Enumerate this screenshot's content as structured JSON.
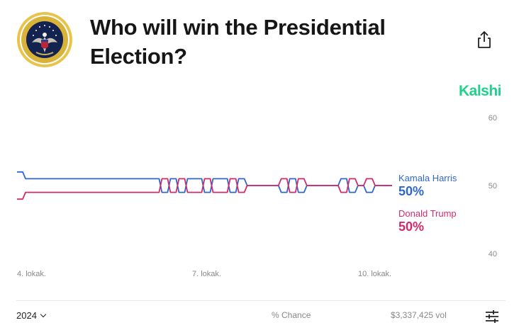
{
  "header": {
    "title": "Who will win the Presidential Election?",
    "brand": "Kalshi",
    "seal_icon": "presidential-seal",
    "share_icon": "share-icon"
  },
  "candidates": [
    {
      "name": "Kamala Harris",
      "percent": "50%",
      "color": "#2f66d0"
    },
    {
      "name": "Donald Trump",
      "percent": "50%",
      "color": "#d42a6a"
    }
  ],
  "chart_data": {
    "type": "line",
    "y_ticks": [
      "60",
      "50",
      "40"
    ],
    "ylim": [
      40,
      60
    ],
    "x_ticks": [
      "4. lokak.",
      "7. lokak.",
      "10. lokak."
    ],
    "grid": false,
    "legend": "right",
    "series": [
      {
        "name": "Kamala Harris",
        "color": "#2f66d0",
        "x": [
          0,
          1,
          2,
          3,
          4,
          5,
          6,
          7,
          8,
          9,
          10,
          11,
          12,
          13,
          14,
          15,
          16,
          17,
          18,
          19,
          20,
          21,
          22,
          23,
          24,
          25,
          26,
          27,
          28,
          29,
          30,
          31,
          32,
          33,
          34,
          35,
          36,
          37,
          38,
          39,
          40,
          41,
          42,
          43,
          44
        ],
        "values": [
          52,
          51,
          51,
          51,
          51,
          51,
          51,
          51,
          51,
          51,
          51,
          51,
          51,
          51,
          51,
          51,
          51,
          49,
          51,
          49,
          51,
          51,
          49,
          51,
          51,
          49,
          51,
          50,
          50,
          50,
          50,
          49,
          51,
          49,
          50,
          50,
          50,
          50,
          51,
          49,
          50,
          49,
          50,
          50,
          50
        ]
      },
      {
        "name": "Donald Trump",
        "color": "#d42a6a",
        "x": [
          0,
          1,
          2,
          3,
          4,
          5,
          6,
          7,
          8,
          9,
          10,
          11,
          12,
          13,
          14,
          15,
          16,
          17,
          18,
          19,
          20,
          21,
          22,
          23,
          24,
          25,
          26,
          27,
          28,
          29,
          30,
          31,
          32,
          33,
          34,
          35,
          36,
          37,
          38,
          39,
          40,
          41,
          42,
          43,
          44
        ],
        "values": [
          48,
          49,
          49,
          49,
          49,
          49,
          49,
          49,
          49,
          49,
          49,
          49,
          49,
          49,
          49,
          49,
          49,
          51,
          49,
          51,
          49,
          49,
          51,
          49,
          49,
          51,
          49,
          50,
          50,
          50,
          50,
          51,
          49,
          51,
          50,
          50,
          50,
          50,
          49,
          51,
          50,
          51,
          50,
          50,
          50
        ]
      }
    ]
  },
  "footer": {
    "year": "2024",
    "chance_label": "% Chance",
    "volume": "$3,337,425 vol",
    "settings_icon": "sliders-icon"
  }
}
